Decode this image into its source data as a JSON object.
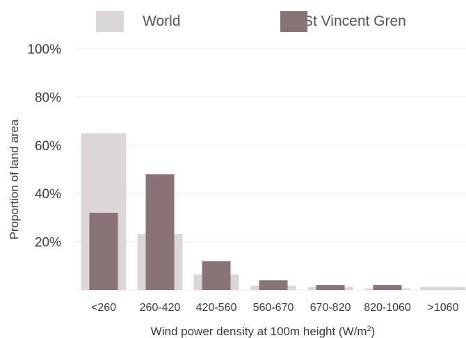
{
  "chart_data": {
    "type": "bar",
    "categories": [
      "<260",
      "260-420",
      "420-560",
      "560-670",
      "670-820",
      "820-1060",
      ">1060"
    ],
    "series": [
      {
        "name": "World",
        "values": [
          65,
          23.3,
          6.5,
          1.8,
          1.3,
          0.7,
          1.3
        ]
      },
      {
        "name": "St Vincent Gren",
        "values": [
          32,
          48,
          12,
          4,
          2,
          2,
          0
        ]
      }
    ],
    "colors": {
      "World": "#dcd6d6",
      "St Vincent Gren": "#8a7375"
    },
    "ylabel": "Proportion of land area",
    "xlabel": "Wind power density at 100m height (W/m",
    "xlabel_sup": "2",
    "xlabel_end": ")",
    "yticks": [
      "100%",
      "80%",
      "60%",
      "40%",
      "20%"
    ],
    "ytick_values": [
      100,
      80,
      60,
      40,
      20
    ],
    "ylim": [
      0,
      100
    ],
    "grid": true,
    "legend_position": "top"
  }
}
